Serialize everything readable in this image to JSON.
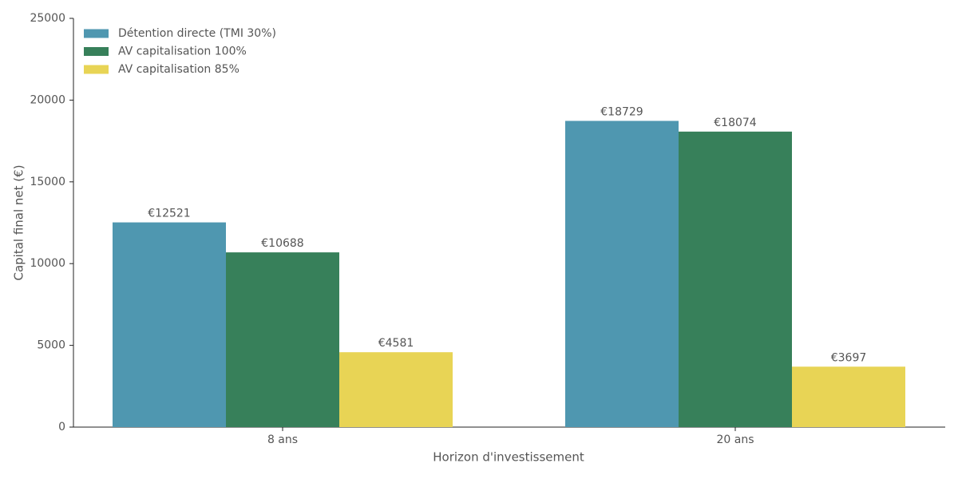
{
  "chart_data": {
    "type": "bar",
    "xlabel": "Horizon d'investissement",
    "ylabel": "Capital final net (€)",
    "categories": [
      "8 ans",
      "20 ans"
    ],
    "series": [
      {
        "name": "Détention directe (TMI 30%)",
        "color": "#4f97b0",
        "values": [
          12521,
          18729
        ],
        "value_labels": [
          "€12521",
          "€18729"
        ]
      },
      {
        "name": "AV capitalisation 100%",
        "color": "#37805a",
        "values": [
          10688,
          18074
        ],
        "value_labels": [
          "€10688",
          "€18074"
        ]
      },
      {
        "name": "AV capitalisation 85%",
        "color": "#e8d455",
        "values": [
          4581,
          3697
        ],
        "value_labels": [
          "€4581",
          "€3697"
        ]
      }
    ],
    "ylim": [
      0,
      25000
    ],
    "yticks": [
      0,
      5000,
      10000,
      15000,
      20000,
      25000
    ],
    "grid": false,
    "legend": "upper-left"
  }
}
